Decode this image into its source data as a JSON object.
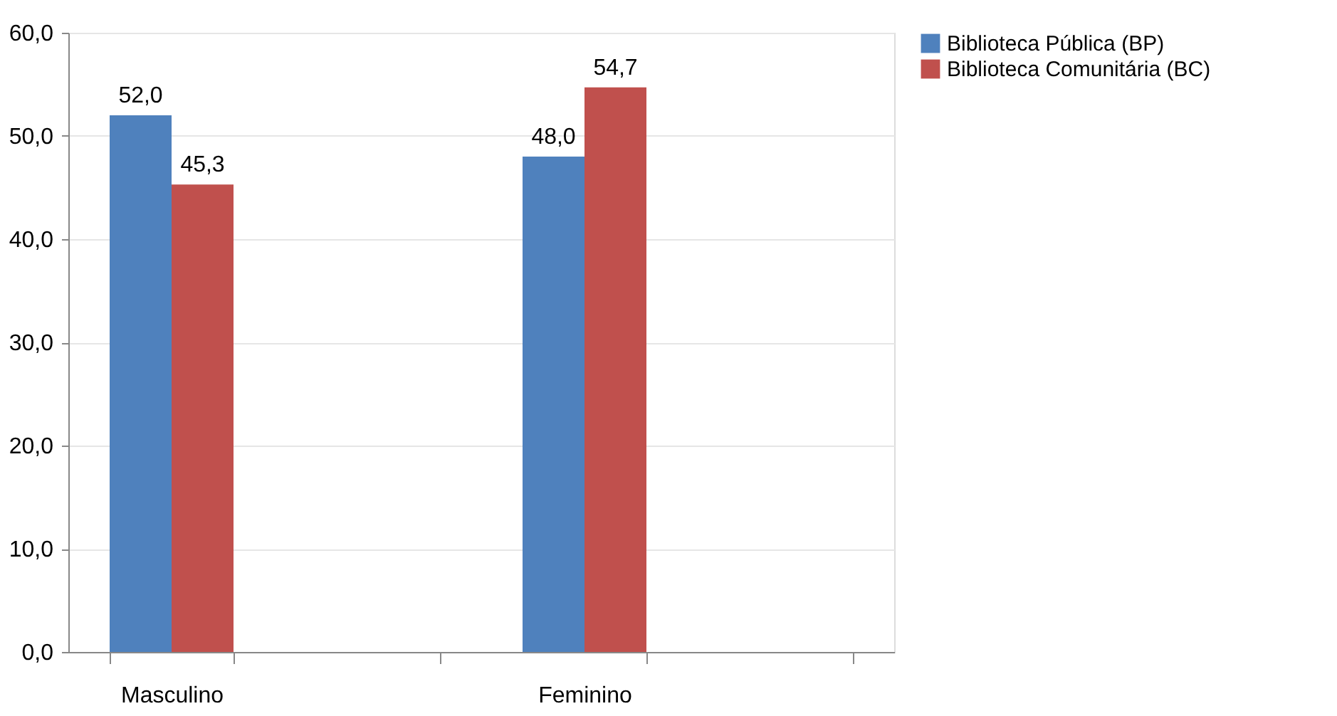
{
  "chart_data": {
    "type": "bar",
    "categories": [
      "Masculino",
      null,
      "Feminino",
      null
    ],
    "series": [
      {
        "name": "Biblioteca Pública (BP)",
        "color": "#4f81bd",
        "values": [
          52.0,
          null,
          48.0,
          null
        ],
        "value_labels": [
          "52,0",
          null,
          "48,0",
          null
        ]
      },
      {
        "name": "Biblioteca Comunitária (BC)",
        "color": "#c0504d",
        "values": [
          45.3,
          null,
          54.7,
          null
        ],
        "value_labels": [
          "45,3",
          null,
          "54,7",
          null
        ]
      }
    ],
    "ylim": [
      0,
      60
    ],
    "yticks": [
      {
        "value": 0,
        "label": "0,0"
      },
      {
        "value": 10,
        "label": "10,0"
      },
      {
        "value": 20,
        "label": "20,0"
      },
      {
        "value": 30,
        "label": "30,0"
      },
      {
        "value": 40,
        "label": "40,0"
      },
      {
        "value": 50,
        "label": "50,0"
      },
      {
        "value": 60,
        "label": "60,0"
      }
    ],
    "grid": "y",
    "legend": "right"
  }
}
